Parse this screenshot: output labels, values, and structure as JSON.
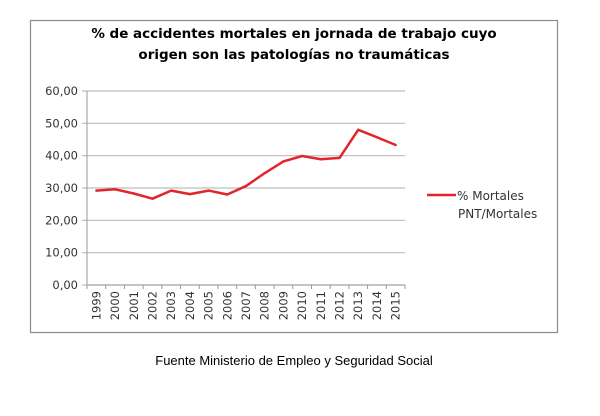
{
  "chart_data": {
    "type": "line",
    "title_lines": [
      "% de accidentes mortales en jornada de trabajo cuyo",
      "origen son las patologías no traumáticas"
    ],
    "categories": [
      "1999",
      "2000",
      "2001",
      "2002",
      "2003",
      "2004",
      "2005",
      "2006",
      "2007",
      "2008",
      "2009",
      "2010",
      "2011",
      "2012",
      "2013",
      "2014",
      "2015"
    ],
    "series": [
      {
        "name": "% Mortales PNT/Mortales",
        "name_lines": [
          "% Mortales",
          "PNT/Mortales"
        ],
        "color": "#e0262b",
        "values": [
          29.2,
          29.6,
          28.3,
          26.7,
          29.2,
          28.1,
          29.2,
          28.0,
          30.6,
          34.6,
          38.2,
          39.9,
          38.9,
          39.3,
          48.0,
          45.7,
          43.3
        ]
      }
    ],
    "ylim": [
      0,
      60
    ],
    "yticks": [
      "0,00",
      "10,00",
      "20,00",
      "30,00",
      "40,00",
      "50,00",
      "60,00"
    ],
    "grid": true,
    "legend": "right",
    "xlabel": "",
    "ylabel": ""
  },
  "caption": "Fuente Ministerio de Empleo y Seguridad Social"
}
